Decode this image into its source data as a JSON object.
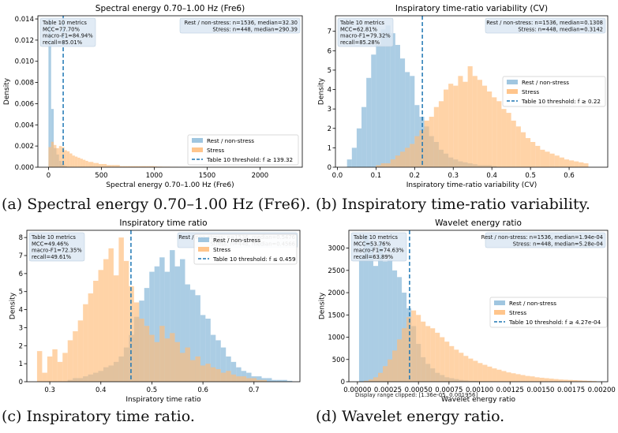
{
  "captions": [
    "(a) Spectral energy 0.70–1.00 Hz (Fre6).",
    "(b) Inspiratory time-ratio variability.",
    "(c) Inspiratory time ratio.",
    "(d) Wavelet energy ratio."
  ],
  "footnote_d": "Display range clipped: [1.36e-05, 0.001956]",
  "colors": {
    "rest": "#8fbcdb",
    "stress": "#ffbb78",
    "threshold": "#1f77b4",
    "box": "#dce8f3"
  },
  "chart_data": [
    {
      "type": "bar",
      "title": "Spectral energy 0.70–1.00 Hz (Fre6)",
      "xlabel": "Spectral energy 0.70–1.00 Hz (Fre6)",
      "ylabel": "Density",
      "xlim": [
        -100,
        2400
      ],
      "ylim": [
        0,
        0.0143
      ],
      "xticks": [
        0,
        500,
        1000,
        1500,
        2000
      ],
      "xtick_labels": [
        "0",
        "500",
        "1000",
        "1500",
        "2000"
      ],
      "yticks": [
        0,
        0.002,
        0.004,
        0.006,
        0.008,
        0.01,
        0.012,
        0.014
      ],
      "ytick_labels": [
        "0.000",
        "0.002",
        "0.004",
        "0.006",
        "0.008",
        "0.010",
        "0.012",
        "0.014"
      ],
      "bin_start": 0,
      "bin_width": 25,
      "series": [
        {
          "name": "Rest / non-stress",
          "values": [
            0.014,
            0.0055,
            0.0018,
            0.0012,
            0.0006,
            0.0003,
            0.0001
          ]
        },
        {
          "name": "Stress",
          "values": [
            0.0019,
            0.0024,
            0.0021,
            0.0018,
            0.002,
            0.0019,
            0.0016,
            0.0015,
            0.0013,
            0.0011,
            0.001,
            0.0009,
            0.0008,
            0.0007,
            0.0006,
            0.0005,
            0.0005,
            0.0004,
            0.0004,
            0.0003,
            0.0003,
            0.0003,
            0.0002,
            0.0002,
            0.0002,
            0.0002,
            0.0002,
            0.0001,
            0.0001,
            0.0001,
            0.0001,
            0.0001,
            0.0001,
            0.0001,
            0.0001,
            0.0001,
            0.0001,
            0.0001,
            0.0001,
            0.0001,
            8e-05,
            6e-05,
            6e-05,
            5e-05,
            5e-05,
            5e-05,
            4e-05,
            4e-05,
            4e-05,
            3e-05,
            3e-05,
            3e-05,
            3e-05,
            2e-05,
            2e-05,
            2e-05,
            2e-05,
            2e-05,
            2e-05,
            2e-05,
            2e-05,
            2e-05,
            2e-05,
            2e-05,
            2e-05,
            2e-05,
            2e-05,
            2e-05,
            2e-05,
            2e-05,
            2e-05,
            2e-05,
            2e-05,
            2e-05,
            2e-05,
            2e-05,
            2e-05,
            2e-05,
            2e-05,
            2e-05,
            2e-05,
            2e-05,
            2e-05,
            2e-05,
            2e-05,
            2e-05,
            2e-05,
            2e-05,
            2e-05
          ]
        }
      ],
      "threshold": 139.32,
      "threshold_label": "Table 10 threshold: f ≥ 139.32",
      "metrics": [
        "Table 10 metrics",
        "MCC=77.70%",
        "macro-F1=84.94%",
        "recall=85.01%"
      ],
      "summary": [
        "Rest / non-stress: n=1536, median=32.30",
        "Stress: n=448, median=290.39"
      ],
      "legend_position": "lower right"
    },
    {
      "type": "bar",
      "title": "Inspiratory time-ratio variability (CV)",
      "xlabel": "Inspiratory time-ratio variability (CV)",
      "ylabel": "Density",
      "xlim": [
        -0.005,
        0.7
      ],
      "ylim": [
        0,
        7.8
      ],
      "xticks": [
        0,
        0.1,
        0.2,
        0.3,
        0.4,
        0.5,
        0.6
      ],
      "xtick_labels": [
        "0.0",
        "0.1",
        "0.2",
        "0.3",
        "0.4",
        "0.5",
        "0.6"
      ],
      "yticks": [
        0,
        1,
        2,
        3,
        4,
        5,
        6,
        7
      ],
      "ytick_labels": [
        "0",
        "1",
        "2",
        "3",
        "4",
        "5",
        "6",
        "7"
      ],
      "bin_start": 0.025,
      "bin_width": 0.0125,
      "series": [
        {
          "name": "Rest / non-stress",
          "values": [
            0.4,
            1.0,
            2.0,
            3.1,
            4.6,
            5.8,
            6.3,
            7.1,
            7.3,
            6.9,
            6.3,
            5.6,
            4.9,
            4.7,
            3.2,
            2.6,
            2.1,
            1.6,
            1.3,
            0.9,
            0.7,
            0.5,
            0.4,
            0.3,
            0.25,
            0.2,
            0.15,
            0.1,
            0.1,
            0.1,
            0.05
          ]
        },
        {
          "name": "Stress",
          "values": [
            0,
            0,
            0,
            0,
            0,
            0,
            0.1,
            0.2,
            0.2,
            0.4,
            0.6,
            0.8,
            1.0,
            1.2,
            1.6,
            1.9,
            2.4,
            2.6,
            3.1,
            3.4,
            4.0,
            4.3,
            4.2,
            4.7,
            4.4,
            5.2,
            4.7,
            4.5,
            4.2,
            3.9,
            3.6,
            3.4,
            3.0,
            2.8,
            2.4,
            2.1,
            1.8,
            1.5,
            1.3,
            1.1,
            0.9,
            0.8,
            0.7,
            0.6,
            0.5,
            0.4,
            0.35,
            0.3,
            0.25,
            0.2
          ]
        }
      ],
      "threshold": 0.22,
      "threshold_label": "Table 10 threshold: f ≥ 0.22",
      "metrics": [
        "Table 10 metrics",
        "MCC=62.81%",
        "macro-F1=79.32%",
        "recall=85.28%"
      ],
      "summary": [
        "Rest / non-stress: n=1536, median=0.1308",
        "Stress: n=448, median=0.3142"
      ],
      "legend_position": "center right"
    },
    {
      "type": "bar",
      "title": "Inspiratory time ratio",
      "xlabel": "Inspiratory time ratio",
      "ylabel": "Density",
      "xlim": [
        0.255,
        0.79
      ],
      "ylim": [
        0,
        8.4
      ],
      "xticks": [
        0.3,
        0.4,
        0.5,
        0.6,
        0.7
      ],
      "xtick_labels": [
        "0.3",
        "0.4",
        "0.5",
        "0.6",
        "0.7"
      ],
      "yticks": [
        0,
        1,
        2,
        3,
        4,
        5,
        6,
        7,
        8
      ],
      "ytick_labels": [
        "0",
        "1",
        "2",
        "3",
        "4",
        "5",
        "6",
        "7",
        "8"
      ],
      "bin_start": 0.275,
      "bin_width": 0.01,
      "series": [
        {
          "name": "Rest / non-stress",
          "values": [
            0,
            0,
            0,
            0,
            0,
            0,
            0.1,
            0.2,
            0.2,
            0.3,
            0.4,
            0.5,
            0.6,
            0.8,
            0.9,
            1.1,
            1.4,
            1.9,
            2.6,
            3.6,
            4.5,
            5.2,
            6.1,
            6.4,
            6.9,
            6.1,
            7.3,
            6.4,
            6.8,
            5.4,
            5.1,
            4.8,
            3.7,
            3.5,
            2.6,
            2.3,
            1.9,
            1.4,
            1.1,
            0.8,
            0.6,
            0.5,
            0.3,
            0.3,
            0.2,
            0.2,
            0.1,
            0.1,
            0.1,
            0.05
          ]
        },
        {
          "name": "Stress",
          "values": [
            1.7,
            0.5,
            1.4,
            1.8,
            1.1,
            1.6,
            2.3,
            2.8,
            3.4,
            4.3,
            4.9,
            5.6,
            6.2,
            6.8,
            7.4,
            5.9,
            8.0,
            6.7,
            5.3,
            4.4,
            3.5,
            3.1,
            2.6,
            2.2,
            3.1,
            2.4,
            2.7,
            2.2,
            1.6,
            1.9,
            1.2,
            1.4,
            0.9,
            1.0,
            0.8,
            0.7,
            0.5,
            0.6,
            0.4,
            0.3,
            0.3,
            0.2,
            0.2,
            0.1,
            0.1
          ]
        }
      ],
      "threshold": 0.459,
      "threshold_label": "Table 10 threshold: f ≤ 0.459",
      "metrics": [
        "Table 10 metrics",
        "MCC=49.46%",
        "macro-F1=72.35%",
        "recall=49.61%"
      ],
      "summary": [
        "Rest / non-stress: n=1536, median=0.5476",
        "Stress: n=448, median=0.4566"
      ],
      "legend_position": "upper right"
    },
    {
      "type": "bar",
      "title": "Wavelet energy ratio",
      "xlabel": "Wavelet energy ratio",
      "ylabel": "Density",
      "xlim": [
        -7e-05,
        0.00205
      ],
      "ylim": [
        0,
        3400
      ],
      "xticks": [
        0,
        0.00025,
        0.0005,
        0.00075,
        0.001,
        0.00125,
        0.0015,
        0.00175,
        0.002
      ],
      "xtick_labels": [
        "0.00000",
        "0.00025",
        "0.00050",
        "0.00075",
        "0.00100",
        "0.00125",
        "0.00150",
        "0.00175",
        "0.00200"
      ],
      "yticks": [
        0,
        500,
        1000,
        1500,
        2000,
        2500,
        3000
      ],
      "ytick_labels": [
        "0",
        "500",
        "1000",
        "1500",
        "2000",
        "2500",
        "3000"
      ],
      "bin_start": 1.36e-05,
      "bin_width": 3.89e-05,
      "series": [
        {
          "name": "Rest / non-stress",
          "values": [
            2850,
            3300,
            3150,
            2600,
            3150,
            2700,
            2750,
            2500,
            2350,
            2000,
            1650,
            1250,
            850,
            550,
            400,
            300,
            200,
            150,
            100,
            80,
            60,
            40,
            30,
            20,
            20,
            10,
            10,
            10
          ]
        },
        {
          "name": "Stress",
          "values": [
            0,
            20,
            50,
            100,
            200,
            350,
            500,
            700,
            950,
            1200,
            1450,
            1600,
            1500,
            1350,
            1250,
            1200,
            1100,
            1000,
            900,
            800,
            720,
            650,
            580,
            520,
            470,
            420,
            380,
            340,
            300,
            270,
            240,
            210,
            190,
            170,
            150,
            130,
            120,
            100,
            90,
            80,
            70,
            60,
            50,
            45,
            40,
            35,
            30,
            25,
            20,
            15
          ]
        }
      ],
      "threshold": 0.000427,
      "threshold_label": "Table 10 threshold: f ≥ 4.27e-04",
      "metrics": [
        "Table 10 metrics",
        "MCC=53.76%",
        "macro-F1=74.63%",
        "recall=63.89%"
      ],
      "summary": [
        "Rest / non-stress: n=1536, median=1.94e-04",
        "Stress: n=448, median=5.28e-04"
      ],
      "legend_position": "center right"
    }
  ]
}
